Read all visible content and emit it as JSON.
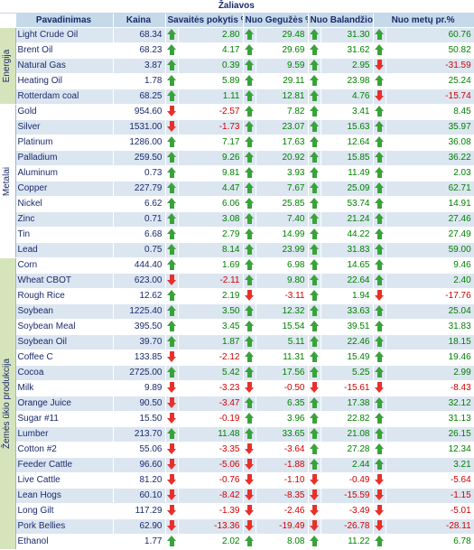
{
  "title": "Žaliavos",
  "headers": {
    "name": "Pavadinimas",
    "price": "Kaina",
    "week": "Savaitės pokytis %",
    "may": "Nuo Gegužės %",
    "april": "Nuo Balandžio %",
    "ytd": "Nuo metų pr.%"
  },
  "groups": [
    {
      "label": "Energija",
      "rows": [
        {
          "name": "Light Crude Oil",
          "price": "68.34",
          "week": "2.80",
          "may": "29.48",
          "april": "31.30",
          "ytd": "60.76"
        },
        {
          "name": "Brent Oil",
          "price": "68.23",
          "week": "4.17",
          "may": "29.69",
          "april": "31.62",
          "ytd": "50.82"
        },
        {
          "name": "Natural Gas",
          "price": "3.87",
          "week": "0.39",
          "may": "9.59",
          "april": "2.95",
          "ytd": "-31.59"
        },
        {
          "name": "Heating Oil",
          "price": "1.78",
          "week": "5.89",
          "may": "29.11",
          "april": "23.98",
          "ytd": "25.24"
        },
        {
          "name": "Rotterdam coal",
          "price": "68.25",
          "week": "1.11",
          "may": "12.81",
          "april": "4.76",
          "ytd": "-15.74"
        }
      ]
    },
    {
      "label": "Metalai",
      "rows": [
        {
          "name": "Gold",
          "price": "954.60",
          "week": "-2.57",
          "may": "7.82",
          "april": "3.41",
          "ytd": "8.45"
        },
        {
          "name": "Silver",
          "price": "1531.00",
          "week": "-1.73",
          "may": "23.07",
          "april": "15.63",
          "ytd": "35.97"
        },
        {
          "name": "Platinum",
          "price": "1286.00",
          "week": "7.17",
          "may": "17.63",
          "april": "12.64",
          "ytd": "36.08"
        },
        {
          "name": "Palladium",
          "price": "259.50",
          "week": "9.26",
          "may": "20.92",
          "april": "15.85",
          "ytd": "36.22"
        },
        {
          "name": "Aluminum",
          "price": "0.73",
          "week": "9.81",
          "may": "3.93",
          "april": "11.49",
          "ytd": "2.03"
        },
        {
          "name": "Copper",
          "price": "227.79",
          "week": "4.47",
          "may": "7.67",
          "april": "25.09",
          "ytd": "62.71"
        },
        {
          "name": "Nickel",
          "price": "6.62",
          "week": "6.06",
          "may": "25.85",
          "april": "53.74",
          "ytd": "14.91"
        },
        {
          "name": "Zinc",
          "price": "0.71",
          "week": "3.08",
          "may": "7.40",
          "april": "21.24",
          "ytd": "27.46"
        },
        {
          "name": "Tin",
          "price": "6.68",
          "week": "2.79",
          "may": "14.99",
          "april": "44.22",
          "ytd": "27.49"
        },
        {
          "name": "Lead",
          "price": "0.75",
          "week": "8.14",
          "may": "23.99",
          "april": "31.83",
          "ytd": "59.00"
        }
      ]
    },
    {
      "label": "Žemės ūkio produkcija",
      "rows": [
        {
          "name": "Corn",
          "price": "444.40",
          "week": "1.69",
          "may": "6.98",
          "april": "14.65",
          "ytd": "9.46"
        },
        {
          "name": "Wheat CBOT",
          "price": "623.00",
          "week": "-2.11",
          "may": "9.80",
          "april": "22.64",
          "ytd": "2.40"
        },
        {
          "name": "Rough Rice",
          "price": "12.62",
          "week": "2.19",
          "may": "-3.11",
          "april": "1.94",
          "ytd": "-17.76"
        },
        {
          "name": "Soybean",
          "price": "1225.40",
          "week": "3.50",
          "may": "12.32",
          "april": "33.63",
          "ytd": "25.04"
        },
        {
          "name": "Soybean Meal",
          "price": "395.50",
          "week": "3.45",
          "may": "15.54",
          "april": "39.51",
          "ytd": "31.83"
        },
        {
          "name": "Soybean Oil",
          "price": "39.70",
          "week": "1.87",
          "may": "5.11",
          "april": "22.46",
          "ytd": "18.15"
        },
        {
          "name": "Coffee C",
          "price": "133.85",
          "week": "-2.12",
          "may": "11.31",
          "april": "15.49",
          "ytd": "19.46"
        },
        {
          "name": "Cocoa",
          "price": "2725.00",
          "week": "5.42",
          "may": "17.56",
          "april": "5.25",
          "ytd": "2.99"
        },
        {
          "name": "Milk",
          "price": "9.89",
          "week": "-3.23",
          "may": "-0.50",
          "april": "-15.61",
          "ytd": "-8.43"
        },
        {
          "name": "Orange Juice",
          "price": "90.50",
          "week": "-3.47",
          "may": "6.35",
          "april": "17.38",
          "ytd": "32.12"
        },
        {
          "name": "Sugar #11",
          "price": "15.50",
          "week": "-0.19",
          "may": "3.96",
          "april": "22.82",
          "ytd": "31.13"
        },
        {
          "name": "Lumber",
          "price": "213.70",
          "week": "11.48",
          "may": "33.65",
          "april": "21.08",
          "ytd": "26.15"
        },
        {
          "name": "Cotton #2",
          "price": "55.06",
          "week": "-3.35",
          "may": "-3.64",
          "april": "27.28",
          "ytd": "12.34"
        },
        {
          "name": "Feeder Cattle",
          "price": "96.60",
          "week": "-5.06",
          "may": "-1.88",
          "april": "2.44",
          "ytd": "3.21"
        },
        {
          "name": "Live Cattle",
          "price": "81.20",
          "week": "-0.76",
          "may": "-1.10",
          "april": "-0.49",
          "ytd": "-5.64"
        },
        {
          "name": "Lean Hogs",
          "price": "60.10",
          "week": "-8.42",
          "may": "-8.35",
          "april": "-15.59",
          "ytd": "-1.15"
        },
        {
          "name": "Long Gilt",
          "price": "117.29",
          "week": "-1.39",
          "may": "-2.46",
          "april": "-3.49",
          "ytd": "-5.01"
        },
        {
          "name": "Pork Bellies",
          "price": "62.90",
          "week": "-13.36",
          "may": "-19.49",
          "april": "-26.78",
          "ytd": "-28.11"
        },
        {
          "name": "Ethanol",
          "price": "1.77",
          "week": "2.02",
          "may": "8.08",
          "april": "11.22",
          "ytd": "6.78"
        }
      ]
    }
  ],
  "colors": {
    "header_bg": "#c5d9e8",
    "stripe_bg": "#dce6f1",
    "group_bg": "#d6e4bc",
    "text": "#1a2a6b",
    "positive": "#008000",
    "negative": "#d00000",
    "arrow_up": "#3aa23a",
    "arrow_down": "#e8302a"
  },
  "icons": {
    "up": "green-up-arrow-icon",
    "down": "red-down-arrow-icon"
  }
}
